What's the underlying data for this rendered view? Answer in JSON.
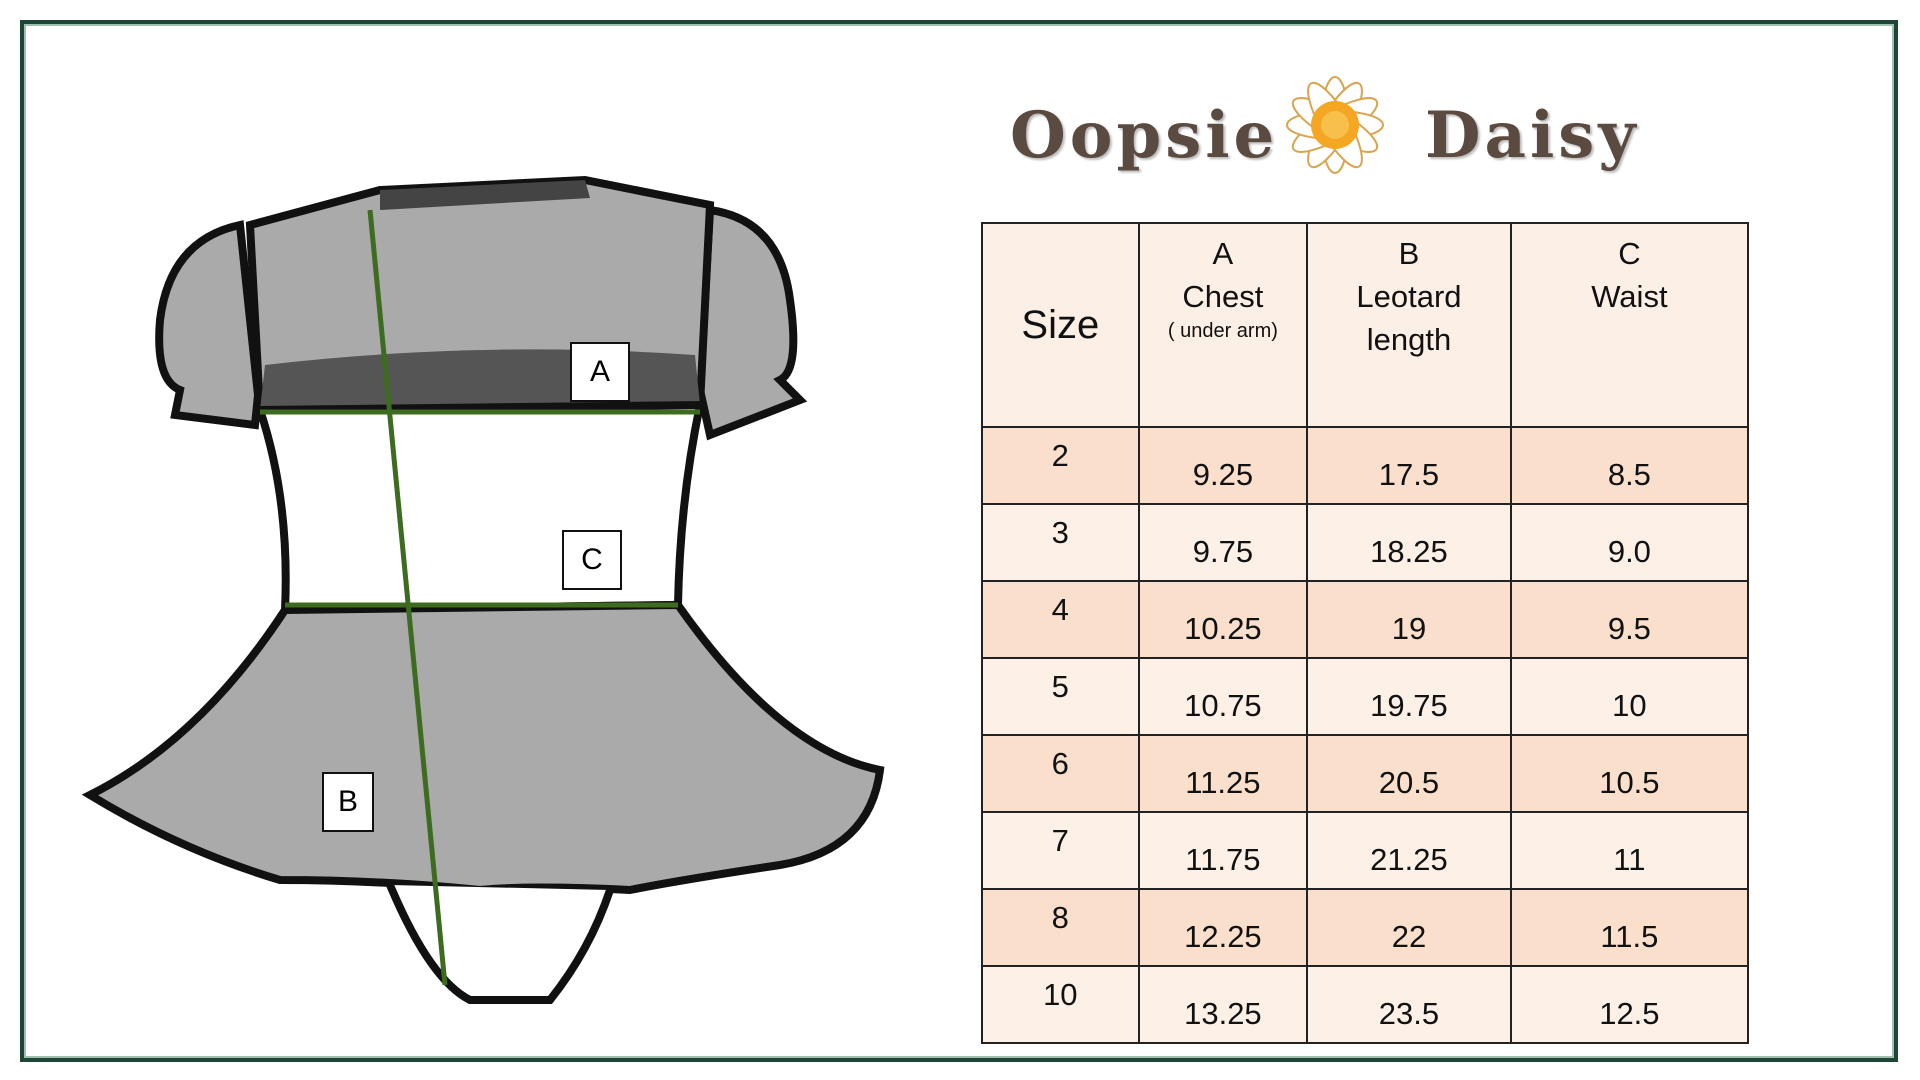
{
  "logo": {
    "word1": "Oopsie",
    "word2": "Daisy"
  },
  "diagram_labels": {
    "a": "A",
    "b": "B",
    "c": "C"
  },
  "table": {
    "headers": [
      {
        "letter": "",
        "label": "Size",
        "sub": ""
      },
      {
        "letter": "A",
        "label": "Chest",
        "sub": "( under arm)"
      },
      {
        "letter": "B",
        "label": "Leotard length",
        "sub": ""
      },
      {
        "letter": "C",
        "label": "Waist",
        "sub": ""
      }
    ],
    "rows": [
      [
        "2",
        "9.25",
        "17.5",
        "8.5"
      ],
      [
        "3",
        "9.75",
        "18.25",
        "9.0"
      ],
      [
        "4",
        "10.25",
        "19",
        "9.5"
      ],
      [
        "5",
        "10.75",
        "19.75",
        "10"
      ],
      [
        "6",
        "11.25",
        "20.5",
        "10.5"
      ],
      [
        "7",
        "11.75",
        "21.25",
        "11"
      ],
      [
        "8",
        "12.25",
        "22",
        "11.5"
      ],
      [
        "10",
        "13.25",
        "23.5",
        "12.5"
      ]
    ]
  },
  "colors": {
    "frame": "#1e4535",
    "row_dark": "#f9dfcc",
    "row_light": "#fdf0e7",
    "arrow": "#3d6b1f"
  }
}
